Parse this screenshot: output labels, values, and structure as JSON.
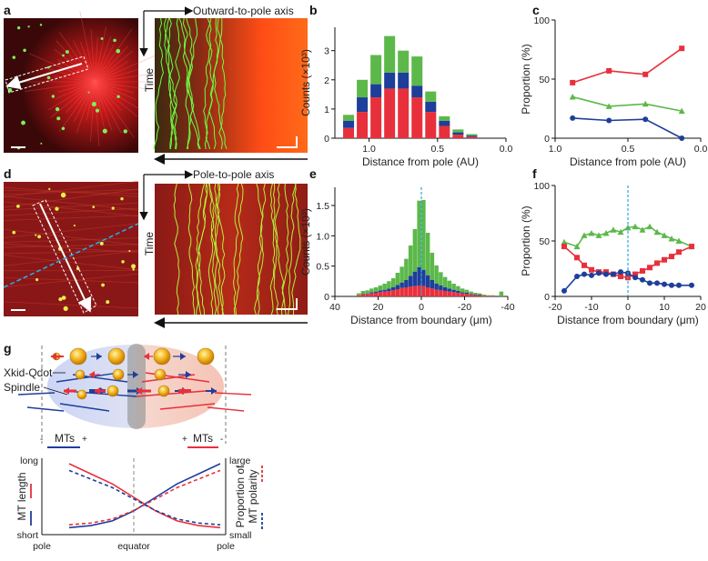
{
  "panel_labels": {
    "a": "a",
    "b": "b",
    "c": "c",
    "d": "d",
    "e": "e",
    "f": "f",
    "g": "g"
  },
  "kymograph": {
    "top_axis_label": "Outward-to-pole axis",
    "bottom_axis_label": "Pole-to-pole axis",
    "time_label": "Time"
  },
  "colors": {
    "red": "#e8303c",
    "blue": "#1e3e9a",
    "green": "#5cb84a",
    "cyan": "#29a9e0",
    "micro_bg": "#3a0c0c"
  },
  "chart_data": [
    {
      "id": "b",
      "type": "bar",
      "stacked": true,
      "ylabel": "Counts (×10³)",
      "xlabel": "Distance from pole (AU)",
      "xlim": [
        1.25,
        0.0
      ],
      "ylim": [
        0,
        3.8
      ],
      "xticks": [
        "1.0",
        "0.5",
        "0.0"
      ],
      "yticks": [
        "0",
        "1",
        "2",
        "3"
      ],
      "x": [
        1.15,
        1.05,
        0.95,
        0.85,
        0.75,
        0.65,
        0.55,
        0.45,
        0.35,
        0.25
      ],
      "series": [
        {
          "name": "red",
          "values": [
            0.35,
            0.9,
            1.4,
            1.7,
            1.7,
            1.4,
            0.9,
            0.42,
            0.12,
            0.05
          ]
        },
        {
          "name": "blue",
          "values": [
            0.25,
            0.5,
            0.45,
            0.55,
            0.55,
            0.4,
            0.35,
            0.18,
            0.08,
            0.04
          ]
        },
        {
          "name": "green",
          "values": [
            0.2,
            0.6,
            1.0,
            1.25,
            0.75,
            1.0,
            0.35,
            0.15,
            0.1,
            0.05
          ]
        }
      ]
    },
    {
      "id": "c",
      "type": "line",
      "ylabel": "Proportion (%)",
      "xlabel": "Distance from pole (AU)",
      "xlim": [
        1.0,
        0.0
      ],
      "ylim": [
        0,
        100
      ],
      "xticks": [
        "1.0",
        "0.5",
        "0.0"
      ],
      "yticks": [
        "0",
        "50",
        "100"
      ],
      "x": [
        0.88,
        0.63,
        0.38,
        0.13
      ],
      "series": [
        {
          "name": "red",
          "values": [
            47,
            57,
            54,
            76
          ]
        },
        {
          "name": "green",
          "values": [
            35,
            27,
            29,
            23
          ]
        },
        {
          "name": "blue",
          "values": [
            17,
            15,
            16,
            0
          ]
        }
      ]
    },
    {
      "id": "e",
      "type": "bar",
      "stacked": true,
      "ylabel": "Counts (×10³)",
      "xlabel": "Distance from boundary (μm)",
      "xlim": [
        40,
        -40
      ],
      "ylim": [
        0,
        1.8
      ],
      "xticks": [
        "40",
        "20",
        "0",
        "-20",
        "-40"
      ],
      "yticks": [
        "0",
        "0.5",
        "1.0",
        "1.5"
      ],
      "x": [
        29,
        27,
        25,
        23,
        21,
        19,
        17,
        15,
        13,
        11,
        9,
        7,
        5,
        3,
        1,
        -1,
        -3,
        -5,
        -7,
        -9,
        -11,
        -13,
        -15,
        -17,
        -19,
        -21,
        -23,
        -25,
        -27,
        -29,
        -31,
        -33,
        -35,
        -37
      ],
      "series": [
        {
          "name": "red",
          "values": [
            0.02,
            0.03,
            0.04,
            0.05,
            0.06,
            0.07,
            0.08,
            0.09,
            0.1,
            0.12,
            0.14,
            0.15,
            0.16,
            0.17,
            0.18,
            0.17,
            0.15,
            0.13,
            0.11,
            0.1,
            0.09,
            0.08,
            0.07,
            0.06,
            0.05,
            0.04,
            0.03,
            0.02,
            0.02,
            0.01,
            0.01,
            0.01,
            0.0,
            0.0
          ]
        },
        {
          "name": "blue",
          "values": [
            0.0,
            0.01,
            0.01,
            0.02,
            0.02,
            0.03,
            0.03,
            0.04,
            0.05,
            0.07,
            0.09,
            0.12,
            0.18,
            0.24,
            0.3,
            0.27,
            0.2,
            0.14,
            0.1,
            0.08,
            0.06,
            0.05,
            0.04,
            0.03,
            0.02,
            0.02,
            0.01,
            0.01,
            0.01,
            0.0,
            0.0,
            0.0,
            0.0,
            0.0
          ]
        },
        {
          "name": "green",
          "values": [
            0.03,
            0.05,
            0.05,
            0.06,
            0.07,
            0.08,
            0.1,
            0.12,
            0.15,
            0.2,
            0.26,
            0.35,
            0.5,
            0.7,
            1.1,
            1.15,
            0.7,
            0.45,
            0.3,
            0.22,
            0.17,
            0.13,
            0.1,
            0.08,
            0.06,
            0.05,
            0.04,
            0.03,
            0.02,
            0.02,
            0.01,
            0.01,
            0.0,
            0.08
          ]
        }
      ]
    },
    {
      "id": "f",
      "type": "line",
      "ylabel": "Proportion (%)",
      "xlabel": "Distance from boundary (μm)",
      "xlim": [
        -20,
        20
      ],
      "ylim": [
        0,
        100
      ],
      "xticks": [
        "-20",
        "-10",
        "0",
        "10",
        "20"
      ],
      "yticks": [
        "0",
        "50",
        "100"
      ],
      "x": [
        -17.5,
        -14,
        -12,
        -10,
        -8,
        -6,
        -4,
        -2,
        0,
        2,
        4,
        6,
        8,
        10,
        12,
        14,
        17.5
      ],
      "series": [
        {
          "name": "green",
          "values": [
            49,
            45,
            55,
            57,
            55,
            57,
            60,
            58,
            62,
            63,
            60,
            63,
            58,
            55,
            52,
            50,
            45
          ]
        },
        {
          "name": "red",
          "values": [
            45,
            35,
            28,
            24,
            22,
            22,
            20,
            18,
            17,
            20,
            23,
            26,
            30,
            33,
            36,
            40,
            45
          ]
        },
        {
          "name": "blue",
          "values": [
            5,
            18,
            20,
            19,
            21,
            20,
            20,
            22,
            21,
            17,
            15,
            12,
            12,
            11,
            10,
            10,
            10
          ]
        }
      ]
    },
    {
      "id": "g",
      "type": "line",
      "y_left_label": "MT length",
      "y_right_label": "Proportion of MT polarity",
      "y_left_ticks": [
        "long",
        "short"
      ],
      "y_right_ticks": [
        "large",
        "small"
      ],
      "x_ticks": [
        "pole",
        "equator",
        "pole"
      ],
      "series": [
        {
          "name": "MT length (blue)",
          "values": [
            0.05,
            0.08,
            0.15,
            0.3,
            0.5,
            0.7,
            0.85,
            1.0
          ]
        },
        {
          "name": "MT length (red)",
          "values": [
            1.0,
            0.85,
            0.7,
            0.5,
            0.3,
            0.15,
            0.08,
            0.05
          ]
        }
      ]
    }
  ],
  "schematic": {
    "xkid_label": "Xkid-Qdot",
    "spindle_label": "Spindle",
    "mts_left": "MTs",
    "mts_right": "MTs",
    "minus": "-",
    "plus": "+"
  }
}
